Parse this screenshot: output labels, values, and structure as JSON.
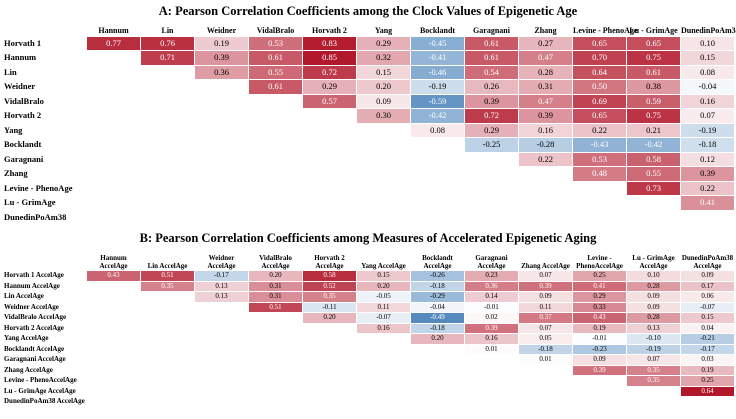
{
  "figure": {
    "background": "#ffffff"
  },
  "chart_data": [
    {
      "type": "heatmap",
      "panel": "A",
      "title": "A: Pearson Correlation Coefficients among the Clock Values of Epigenetic Age",
      "columns": [
        "Hannum",
        "Lin",
        "Weidner",
        "VidalBralo",
        "Horvath 2",
        "Yang",
        "Bocklandt",
        "Garagnani",
        "Zhang",
        "Levine - PhenoAge",
        "Lu - GrimAge",
        "DunedinPoAm38"
      ],
      "rows": [
        "Horvath 1",
        "Hannum",
        "Lin",
        "Weidner",
        "VidalBralo",
        "Horvath 2",
        "Yang",
        "Bocklandt",
        "Garagnani",
        "Zhang",
        "Levine - PhenoAge",
        "Lu - GrimAge",
        "DunedinPoAm38"
      ],
      "values": [
        [
          0.77,
          0.76,
          0.19,
          0.53,
          0.83,
          0.29,
          -0.45,
          0.61,
          0.27,
          0.65,
          0.65,
          0.1
        ],
        [
          null,
          0.71,
          0.39,
          0.61,
          0.85,
          0.32,
          -0.41,
          0.61,
          0.47,
          0.7,
          0.75,
          0.15
        ],
        [
          null,
          null,
          0.36,
          0.55,
          0.72,
          0.15,
          -0.46,
          0.54,
          0.28,
          0.64,
          0.61,
          0.08
        ],
        [
          null,
          null,
          null,
          0.61,
          0.29,
          0.2,
          -0.19,
          0.26,
          0.31,
          0.5,
          0.38,
          -0.04
        ],
        [
          null,
          null,
          null,
          null,
          0.57,
          0.09,
          -0.59,
          0.39,
          0.47,
          0.69,
          0.59,
          0.16
        ],
        [
          null,
          null,
          null,
          null,
          null,
          0.3,
          -0.42,
          0.72,
          0.39,
          0.65,
          0.75,
          0.07
        ],
        [
          null,
          null,
          null,
          null,
          null,
          null,
          0.08,
          0.29,
          0.16,
          0.22,
          0.21,
          -0.19
        ],
        [
          null,
          null,
          null,
          null,
          null,
          null,
          null,
          -0.25,
          -0.28,
          -0.43,
          -0.42,
          -0.18
        ],
        [
          null,
          null,
          null,
          null,
          null,
          null,
          null,
          null,
          0.22,
          0.53,
          0.58,
          0.12
        ],
        [
          null,
          null,
          null,
          null,
          null,
          null,
          null,
          null,
          null,
          0.48,
          0.55,
          0.39
        ],
        [
          null,
          null,
          null,
          null,
          null,
          null,
          null,
          null,
          null,
          null,
          0.73,
          0.22
        ],
        [
          null,
          null,
          null,
          null,
          null,
          null,
          null,
          null,
          null,
          null,
          null,
          0.41
        ],
        [
          null,
          null,
          null,
          null,
          null,
          null,
          null,
          null,
          null,
          null,
          null,
          null
        ]
      ],
      "color_scale": {
        "positive": "#b2182b",
        "negative": "#2166ac",
        "max_abs": 0.85,
        "white_text_min": 0.4
      }
    },
    {
      "type": "heatmap",
      "panel": "B",
      "title": "B: Pearson Correlation Coefficients among Measures of Accelerated Epigenetic Aging",
      "columns": [
        "Hannum AccelAge",
        "Lin AccelAge",
        "Weidner AccelAge",
        "VidalBralo AccelAge",
        "Horvath 2 AccelAge",
        "Yang AccelAge",
        "Bocklandt AccelAge",
        "Garagnani AccelAge",
        "Zhang AccelAge",
        "Levine - PhenoAccelAge",
        "Lu - GrimAge AccelAge",
        "DunedinPoAm38 AccelAge"
      ],
      "rows": [
        "Horvath 1 AccelAge",
        "Hannum AccelAge",
        "Lin AccelAge",
        "Weidner AccelAge",
        "VidalBralo AccelAge",
        "Horvath 2 AccelAge",
        "Yang AccelAge",
        "Bocklandt AccelAge",
        "Garagnani AccelAge",
        "Zhang AccelAge",
        "Levine - PhenoAccelAge",
        "Lu - GrimAge AccelAge",
        "DunedinPoAm38 AccelAge"
      ],
      "values": [
        [
          0.43,
          0.51,
          -0.17,
          0.2,
          0.58,
          0.15,
          -0.26,
          0.23,
          0.07,
          0.25,
          0.1,
          0.09
        ],
        [
          null,
          0.35,
          0.13,
          0.31,
          0.52,
          0.2,
          -0.18,
          0.36,
          0.39,
          0.41,
          0.28,
          0.17
        ],
        [
          null,
          null,
          0.13,
          0.31,
          0.35,
          -0.05,
          -0.29,
          0.14,
          0.09,
          0.29,
          0.09,
          0.06
        ],
        [
          null,
          null,
          null,
          0.51,
          -0.11,
          0.11,
          -0.04,
          -0.01,
          0.11,
          0.33,
          0.09,
          -0.07
        ],
        [
          null,
          null,
          null,
          null,
          0.2,
          -0.07,
          -0.49,
          0.02,
          0.37,
          0.43,
          0.28,
          0.15
        ],
        [
          null,
          null,
          null,
          null,
          null,
          0.16,
          -0.18,
          0.39,
          0.07,
          0.19,
          0.13,
          0.04
        ],
        [
          null,
          null,
          null,
          null,
          null,
          null,
          0.2,
          0.16,
          0.05,
          -0.01,
          -0.1,
          -0.21
        ],
        [
          null,
          null,
          null,
          null,
          null,
          null,
          null,
          0.01,
          -0.18,
          -0.23,
          -0.19,
          -0.17
        ],
        [
          null,
          null,
          null,
          null,
          null,
          null,
          null,
          null,
          0.01,
          0.09,
          0.07,
          0.03
        ],
        [
          null,
          null,
          null,
          null,
          null,
          null,
          null,
          null,
          null,
          0.39,
          0.35,
          0.19
        ],
        [
          null,
          null,
          null,
          null,
          null,
          null,
          null,
          null,
          null,
          null,
          0.35,
          0.25
        ],
        [
          null,
          null,
          null,
          null,
          null,
          null,
          null,
          null,
          null,
          null,
          null,
          0.64
        ],
        [
          null,
          null,
          null,
          null,
          null,
          null,
          null,
          null,
          null,
          null,
          null,
          null
        ]
      ],
      "color_scale": {
        "positive": "#b2182b",
        "negative": "#2166ac",
        "max_abs": 0.64,
        "white_text_min": 0.35
      }
    }
  ]
}
